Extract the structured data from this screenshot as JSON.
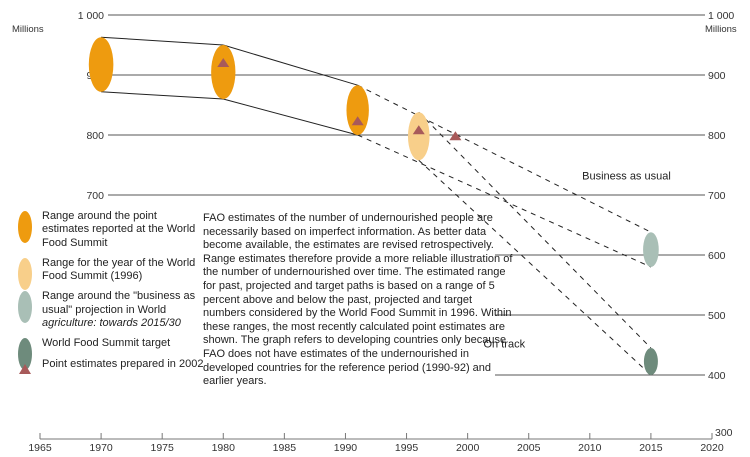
{
  "chart_data": {
    "type": "scatter",
    "title": "",
    "xlabel": "",
    "ylabel": "Millions",
    "xlim": [
      1965,
      2020
    ],
    "ylim": [
      300,
      1000
    ],
    "x_ticks": [
      1965,
      1970,
      1975,
      1980,
      1985,
      1990,
      1995,
      2000,
      2005,
      2010,
      2015,
      2020
    ],
    "y_ticks": [
      300,
      400,
      500,
      600,
      700,
      800,
      900,
      1000
    ],
    "y_tick_labels": [
      "300",
      "400",
      "500",
      "600",
      "700",
      "800",
      "900",
      "1 000"
    ],
    "y_unit_label": "Millions",
    "grid": true,
    "ranges": [
      {
        "name": "World Food Summit estimate",
        "category": "wfs",
        "year": 1970,
        "low": 872,
        "high": 963,
        "color": "#ee9b0f"
      },
      {
        "name": "World Food Summit estimate",
        "category": "wfs",
        "year": 1980,
        "low": 860,
        "high": 950,
        "color": "#ee9b0f"
      },
      {
        "name": "World Food Summit estimate",
        "category": "wfs",
        "year": 1991,
        "low": 800,
        "high": 883,
        "color": "#ee9b0f"
      },
      {
        "name": "Year of World Food Summit",
        "category": "wfs1996",
        "year": 1996,
        "low": 758,
        "high": 838,
        "color": "#f8cf8a"
      },
      {
        "name": "Business as usual projection",
        "category": "bau",
        "year": 2015,
        "low": 580,
        "high": 638,
        "color": "#a9bfb6"
      },
      {
        "name": "World Food Summit target",
        "category": "target",
        "year": 2015,
        "low": 400,
        "high": 445,
        "color": "#6e8b7c"
      }
    ],
    "point_estimates_2002": [
      {
        "year": 1980,
        "value": 920
      },
      {
        "year": 1991,
        "value": 823
      },
      {
        "year": 1996,
        "value": 808
      },
      {
        "year": 1999,
        "value": 798
      }
    ],
    "connectors": [
      {
        "from": 0,
        "to": 1,
        "style": "solid"
      },
      {
        "from": 1,
        "to": 2,
        "style": "solid"
      },
      {
        "from": 2,
        "to": 4,
        "style": "dashed"
      },
      {
        "from": 3,
        "to": 5,
        "style": "dashed"
      }
    ],
    "annotations": [
      {
        "text": "Business as usual",
        "x": 2013,
        "y": 726
      },
      {
        "text": "On track",
        "x": 2003,
        "y": 446
      }
    ],
    "colors": {
      "grid": "#555555",
      "connector": "#222222",
      "triangle": "#a85a5a"
    }
  },
  "legend": {
    "items": [
      {
        "label": "Range around the point estimates reported at the World Food Summit",
        "color": "#ee9b0f"
      },
      {
        "label": "Range for the year of the World Food Summit (1996)",
        "color": "#f8cf8a"
      },
      {
        "label_plain": "Range around the \"business as usual\" projection in World ",
        "label_italic": "agriculture: towards 2015/30",
        "color": "#a9bfb6"
      },
      {
        "label": "World Food Summit target",
        "color": "#6e8b7c"
      },
      {
        "label": "Point estimates prepared in 2002",
        "color": "#a85a5a"
      }
    ]
  },
  "note": {
    "text": "FAO estimates of the number of undernourished people are necessarily based on imperfect information. As better data become available, the estimates are revised retrospectively. Range estimates therefore provide a more reliable illustration of the number of undernourished over time. The estimated range for past, projected and target paths is based on a range of 5 percent above and below the past, projected and target numbers considered by the World Food Summit in 1996. Within these ranges, the most recently calculated point estimates are shown. The graph refers to developing countries only because FAO does not have estimates of the undernourished in developed countries for the reference period (1990-92) and earlier years."
  }
}
